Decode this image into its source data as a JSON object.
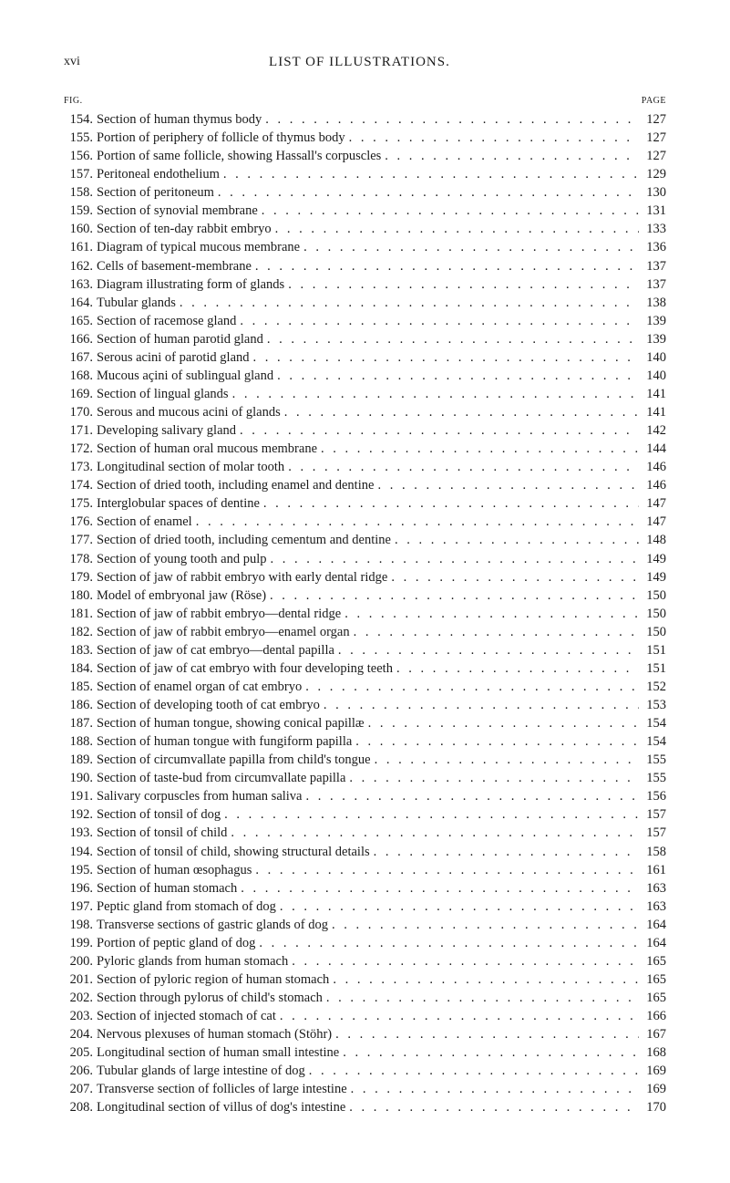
{
  "header": {
    "roman_numeral": "xvi",
    "title": "LIST OF ILLUSTRATIONS."
  },
  "column_headers": {
    "left": "FIG.",
    "right": "PAGE"
  },
  "entries": [
    {
      "fig": "154.",
      "title": "Section of human thymus body",
      "page": "127"
    },
    {
      "fig": "155.",
      "title": "Portion of periphery of follicle of thymus body",
      "page": "127"
    },
    {
      "fig": "156.",
      "title": "Portion of same follicle, showing Hassall's corpuscles",
      "page": "127"
    },
    {
      "fig": "157.",
      "title": "Peritoneal endothelium",
      "page": "129"
    },
    {
      "fig": "158.",
      "title": "Section of peritoneum",
      "page": "130"
    },
    {
      "fig": "159.",
      "title": "Section of synovial membrane",
      "page": "131"
    },
    {
      "fig": "160.",
      "title": "Section of ten-day rabbit embryo",
      "page": "133"
    },
    {
      "fig": "161.",
      "title": "Diagram of typical mucous membrane",
      "page": "136"
    },
    {
      "fig": "162.",
      "title": "Cells of basement-membrane",
      "page": "137"
    },
    {
      "fig": "163.",
      "title": "Diagram illustrating form of glands",
      "page": "137"
    },
    {
      "fig": "164.",
      "title": "Tubular glands",
      "page": "138"
    },
    {
      "fig": "165.",
      "title": "Section of racemose gland",
      "page": "139"
    },
    {
      "fig": "166.",
      "title": "Section of human parotid gland",
      "page": "139"
    },
    {
      "fig": "167.",
      "title": "Serous acini of parotid gland",
      "page": "140"
    },
    {
      "fig": "168.",
      "title": "Mucous açini of sublingual gland",
      "page": "140"
    },
    {
      "fig": "169.",
      "title": "Section of lingual glands",
      "page": "141"
    },
    {
      "fig": "170.",
      "title": "Serous and mucous acini of glands",
      "page": "141"
    },
    {
      "fig": "171.",
      "title": "Developing salivary gland",
      "page": "142"
    },
    {
      "fig": "172.",
      "title": "Section of human oral mucous membrane",
      "page": "144"
    },
    {
      "fig": "173.",
      "title": "Longitudinal section of molar tooth",
      "page": "146"
    },
    {
      "fig": "174.",
      "title": "Section of dried tooth, including enamel and dentine",
      "page": "146"
    },
    {
      "fig": "175.",
      "title": "Interglobular spaces of dentine",
      "page": "147"
    },
    {
      "fig": "176.",
      "title": "Section of enamel",
      "page": "147"
    },
    {
      "fig": "177.",
      "title": "Section of dried tooth, including cementum and dentine",
      "page": "148"
    },
    {
      "fig": "178.",
      "title": "Section of young tooth and pulp",
      "page": "149"
    },
    {
      "fig": "179.",
      "title": "Section of jaw of rabbit embryo with early dental ridge",
      "page": "149"
    },
    {
      "fig": "180.",
      "title": "Model of embryonal jaw (Röse)",
      "page": "150"
    },
    {
      "fig": "181.",
      "title": "Section of jaw of rabbit embryo—dental ridge",
      "page": "150"
    },
    {
      "fig": "182.",
      "title": "Section of jaw of rabbit embryo—enamel organ",
      "page": "150"
    },
    {
      "fig": "183.",
      "title": "Section of jaw of cat embryo—dental papilla",
      "page": "151"
    },
    {
      "fig": "184.",
      "title": "Section of jaw of cat embryo with four developing teeth",
      "page": "151"
    },
    {
      "fig": "185.",
      "title": "Section of enamel organ of cat embryo",
      "page": "152"
    },
    {
      "fig": "186.",
      "title": "Section of developing tooth of cat embryo",
      "page": "153"
    },
    {
      "fig": "187.",
      "title": "Section of human tongue, showing conical papillæ",
      "page": "154"
    },
    {
      "fig": "188.",
      "title": "Section of human tongue with fungiform papilla",
      "page": "154"
    },
    {
      "fig": "189.",
      "title": "Section of circumvallate papilla from child's tongue",
      "page": "155"
    },
    {
      "fig": "190.",
      "title": "Section of taste-bud from circumvallate papilla",
      "page": "155"
    },
    {
      "fig": "191.",
      "title": "Salivary corpuscles from human saliva",
      "page": "156"
    },
    {
      "fig": "192.",
      "title": "Section of tonsil of dog",
      "page": "157"
    },
    {
      "fig": "193.",
      "title": "Section of tonsil of child",
      "page": "157"
    },
    {
      "fig": "194.",
      "title": "Section of tonsil of child, showing structural details",
      "page": "158"
    },
    {
      "fig": "195.",
      "title": "Section of human œsophagus",
      "page": "161"
    },
    {
      "fig": "196.",
      "title": "Section of human stomach",
      "page": "163"
    },
    {
      "fig": "197.",
      "title": "Peptic gland from stomach of dog",
      "page": "163"
    },
    {
      "fig": "198.",
      "title": "Transverse sections of gastric glands of dog",
      "page": "164"
    },
    {
      "fig": "199.",
      "title": "Portion of peptic gland of dog",
      "page": "164"
    },
    {
      "fig": "200.",
      "title": "Pyloric glands from human stomach",
      "page": "165"
    },
    {
      "fig": "201.",
      "title": "Section of pyloric region of human stomach",
      "page": "165"
    },
    {
      "fig": "202.",
      "title": "Section through pylorus of child's stomach",
      "page": "165"
    },
    {
      "fig": "203.",
      "title": "Section of injected stomach of cat",
      "page": "166"
    },
    {
      "fig": "204.",
      "title": "Nervous plexuses of human stomach (Stöhr)",
      "page": "167"
    },
    {
      "fig": "205.",
      "title": "Longitudinal section of human small intestine",
      "page": "168"
    },
    {
      "fig": "206.",
      "title": "Tubular glands of large intestine of dog",
      "page": "169"
    },
    {
      "fig": "207.",
      "title": "Transverse section of follicles of large intestine",
      "page": "169"
    },
    {
      "fig": "208.",
      "title": "Longitudinal section of villus of dog's intestine",
      "page": "170"
    }
  ]
}
